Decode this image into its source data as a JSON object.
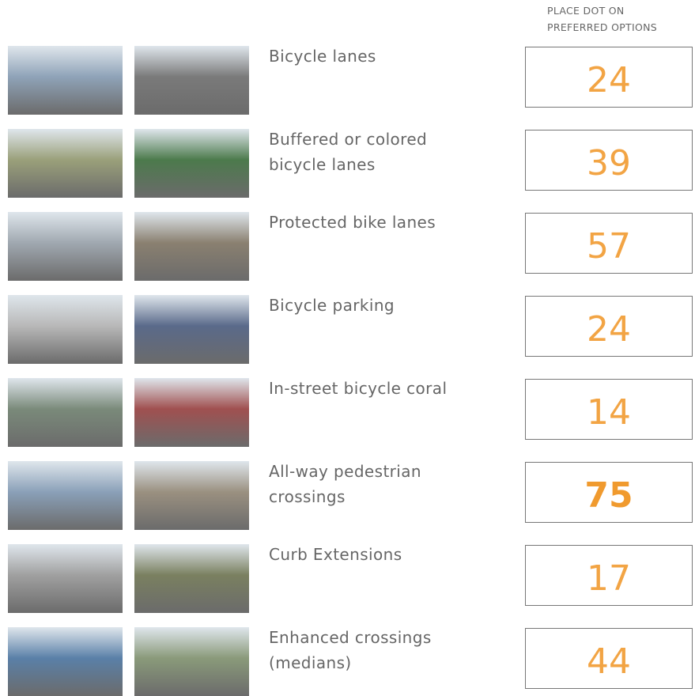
{
  "header": [
    "PLACE DOT ON",
    "PREFERRED OPTIONS"
  ],
  "rows": [
    {
      "label": [
        "Bicycle lanes"
      ],
      "count": 24,
      "bold": false
    },
    {
      "label": [
        "Buffered or colored",
        "bicycle lanes"
      ],
      "count": 39,
      "bold": false
    },
    {
      "label": [
        "Protected bike lanes"
      ],
      "count": 57,
      "bold": false
    },
    {
      "label": [
        "Bicycle parking"
      ],
      "count": 24,
      "bold": false
    },
    {
      "label": [
        "In-street bicycle coral"
      ],
      "count": 14,
      "bold": false
    },
    {
      "label": [
        "All-way pedestrian",
        "crossings"
      ],
      "count": 75,
      "bold": true
    },
    {
      "label": [
        "Curb Extensions"
      ],
      "count": 17,
      "bold": false
    },
    {
      "label": [
        "Enhanced crossings",
        "(medians)"
      ],
      "count": 44,
      "bold": false
    }
  ]
}
